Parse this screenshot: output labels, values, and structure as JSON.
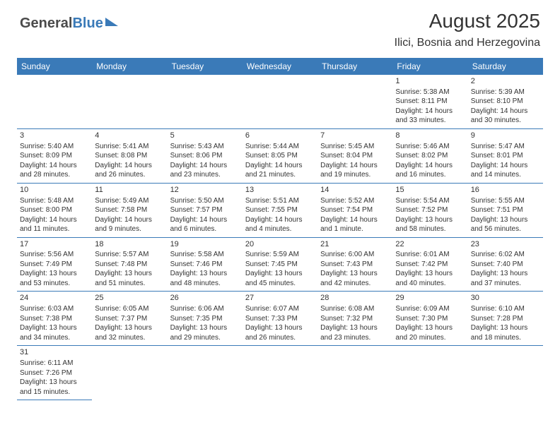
{
  "logo": {
    "text1": "General",
    "text2": "Blue"
  },
  "header": {
    "title": "August 2025",
    "location": "Ilici, Bosnia and Herzegovina"
  },
  "colors": {
    "header_bg": "#3a7ab8",
    "header_fg": "#ffffff",
    "border": "#3a7ab8",
    "text": "#333333"
  },
  "weekdays": [
    "Sunday",
    "Monday",
    "Tuesday",
    "Wednesday",
    "Thursday",
    "Friday",
    "Saturday"
  ],
  "weeks": [
    [
      null,
      null,
      null,
      null,
      null,
      {
        "n": "1",
        "a": "Sunrise: 5:38 AM",
        "b": "Sunset: 8:11 PM",
        "c": "Daylight: 14 hours",
        "d": "and 33 minutes."
      },
      {
        "n": "2",
        "a": "Sunrise: 5:39 AM",
        "b": "Sunset: 8:10 PM",
        "c": "Daylight: 14 hours",
        "d": "and 30 minutes."
      }
    ],
    [
      {
        "n": "3",
        "a": "Sunrise: 5:40 AM",
        "b": "Sunset: 8:09 PM",
        "c": "Daylight: 14 hours",
        "d": "and 28 minutes."
      },
      {
        "n": "4",
        "a": "Sunrise: 5:41 AM",
        "b": "Sunset: 8:08 PM",
        "c": "Daylight: 14 hours",
        "d": "and 26 minutes."
      },
      {
        "n": "5",
        "a": "Sunrise: 5:43 AM",
        "b": "Sunset: 8:06 PM",
        "c": "Daylight: 14 hours",
        "d": "and 23 minutes."
      },
      {
        "n": "6",
        "a": "Sunrise: 5:44 AM",
        "b": "Sunset: 8:05 PM",
        "c": "Daylight: 14 hours",
        "d": "and 21 minutes."
      },
      {
        "n": "7",
        "a": "Sunrise: 5:45 AM",
        "b": "Sunset: 8:04 PM",
        "c": "Daylight: 14 hours",
        "d": "and 19 minutes."
      },
      {
        "n": "8",
        "a": "Sunrise: 5:46 AM",
        "b": "Sunset: 8:02 PM",
        "c": "Daylight: 14 hours",
        "d": "and 16 minutes."
      },
      {
        "n": "9",
        "a": "Sunrise: 5:47 AM",
        "b": "Sunset: 8:01 PM",
        "c": "Daylight: 14 hours",
        "d": "and 14 minutes."
      }
    ],
    [
      {
        "n": "10",
        "a": "Sunrise: 5:48 AM",
        "b": "Sunset: 8:00 PM",
        "c": "Daylight: 14 hours",
        "d": "and 11 minutes."
      },
      {
        "n": "11",
        "a": "Sunrise: 5:49 AM",
        "b": "Sunset: 7:58 PM",
        "c": "Daylight: 14 hours",
        "d": "and 9 minutes."
      },
      {
        "n": "12",
        "a": "Sunrise: 5:50 AM",
        "b": "Sunset: 7:57 PM",
        "c": "Daylight: 14 hours",
        "d": "and 6 minutes."
      },
      {
        "n": "13",
        "a": "Sunrise: 5:51 AM",
        "b": "Sunset: 7:55 PM",
        "c": "Daylight: 14 hours",
        "d": "and 4 minutes."
      },
      {
        "n": "14",
        "a": "Sunrise: 5:52 AM",
        "b": "Sunset: 7:54 PM",
        "c": "Daylight: 14 hours",
        "d": "and 1 minute."
      },
      {
        "n": "15",
        "a": "Sunrise: 5:54 AM",
        "b": "Sunset: 7:52 PM",
        "c": "Daylight: 13 hours",
        "d": "and 58 minutes."
      },
      {
        "n": "16",
        "a": "Sunrise: 5:55 AM",
        "b": "Sunset: 7:51 PM",
        "c": "Daylight: 13 hours",
        "d": "and 56 minutes."
      }
    ],
    [
      {
        "n": "17",
        "a": "Sunrise: 5:56 AM",
        "b": "Sunset: 7:49 PM",
        "c": "Daylight: 13 hours",
        "d": "and 53 minutes."
      },
      {
        "n": "18",
        "a": "Sunrise: 5:57 AM",
        "b": "Sunset: 7:48 PM",
        "c": "Daylight: 13 hours",
        "d": "and 51 minutes."
      },
      {
        "n": "19",
        "a": "Sunrise: 5:58 AM",
        "b": "Sunset: 7:46 PM",
        "c": "Daylight: 13 hours",
        "d": "and 48 minutes."
      },
      {
        "n": "20",
        "a": "Sunrise: 5:59 AM",
        "b": "Sunset: 7:45 PM",
        "c": "Daylight: 13 hours",
        "d": "and 45 minutes."
      },
      {
        "n": "21",
        "a": "Sunrise: 6:00 AM",
        "b": "Sunset: 7:43 PM",
        "c": "Daylight: 13 hours",
        "d": "and 42 minutes."
      },
      {
        "n": "22",
        "a": "Sunrise: 6:01 AM",
        "b": "Sunset: 7:42 PM",
        "c": "Daylight: 13 hours",
        "d": "and 40 minutes."
      },
      {
        "n": "23",
        "a": "Sunrise: 6:02 AM",
        "b": "Sunset: 7:40 PM",
        "c": "Daylight: 13 hours",
        "d": "and 37 minutes."
      }
    ],
    [
      {
        "n": "24",
        "a": "Sunrise: 6:03 AM",
        "b": "Sunset: 7:38 PM",
        "c": "Daylight: 13 hours",
        "d": "and 34 minutes."
      },
      {
        "n": "25",
        "a": "Sunrise: 6:05 AM",
        "b": "Sunset: 7:37 PM",
        "c": "Daylight: 13 hours",
        "d": "and 32 minutes."
      },
      {
        "n": "26",
        "a": "Sunrise: 6:06 AM",
        "b": "Sunset: 7:35 PM",
        "c": "Daylight: 13 hours",
        "d": "and 29 minutes."
      },
      {
        "n": "27",
        "a": "Sunrise: 6:07 AM",
        "b": "Sunset: 7:33 PM",
        "c": "Daylight: 13 hours",
        "d": "and 26 minutes."
      },
      {
        "n": "28",
        "a": "Sunrise: 6:08 AM",
        "b": "Sunset: 7:32 PM",
        "c": "Daylight: 13 hours",
        "d": "and 23 minutes."
      },
      {
        "n": "29",
        "a": "Sunrise: 6:09 AM",
        "b": "Sunset: 7:30 PM",
        "c": "Daylight: 13 hours",
        "d": "and 20 minutes."
      },
      {
        "n": "30",
        "a": "Sunrise: 6:10 AM",
        "b": "Sunset: 7:28 PM",
        "c": "Daylight: 13 hours",
        "d": "and 18 minutes."
      }
    ],
    [
      {
        "n": "31",
        "a": "Sunrise: 6:11 AM",
        "b": "Sunset: 7:26 PM",
        "c": "Daylight: 13 hours",
        "d": "and 15 minutes."
      },
      null,
      null,
      null,
      null,
      null,
      null
    ]
  ]
}
